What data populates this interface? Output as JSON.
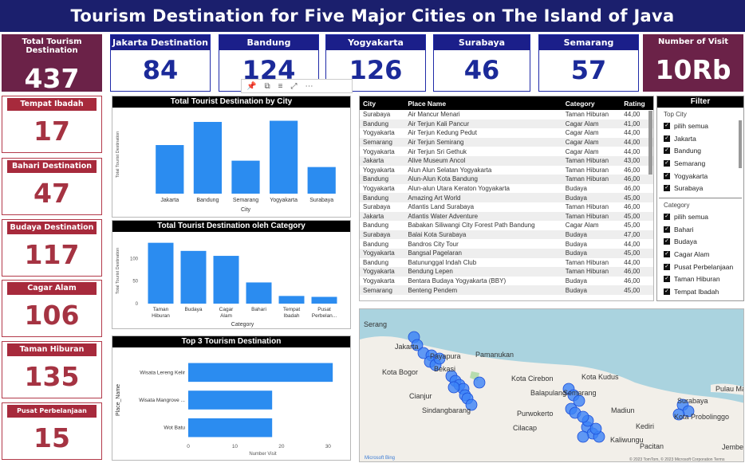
{
  "header": {
    "title": "Tourism Destination for Five Major Cities on The Island of Java"
  },
  "total_kpi": {
    "label": "Total Tourism Destination",
    "value": "437"
  },
  "visit_kpi": {
    "label": "Number of Visit",
    "value": "10Rb"
  },
  "city_kpis": [
    {
      "label": "Jakarta Destination",
      "value": "84"
    },
    {
      "label": "Bandung Destination",
      "value": "124"
    },
    {
      "label": "Yogyakarta Destination",
      "value": "126"
    },
    {
      "label": "Surabaya Destination",
      "value": "46"
    },
    {
      "label": "Semarang Destination",
      "value": "57"
    }
  ],
  "category_kpis": [
    {
      "label": "Tempat Ibadah Destination",
      "value": "17"
    },
    {
      "label": "Bahari Destination",
      "value": "47"
    },
    {
      "label": "Budaya Destination",
      "value": "117"
    },
    {
      "label": "Cagar Alam Destination",
      "value": "106"
    },
    {
      "label": "Taman Hiburan Destination",
      "value": "135"
    },
    {
      "label": "Pusat Perbelanjaan Destination",
      "value": "15"
    }
  ],
  "colors": {
    "bar": "#2b8cf0",
    "title_bg": "#1b1f6d",
    "maroon": "#6b2248",
    "cat_red": "#a72a3c"
  },
  "chart_data": [
    {
      "type": "bar",
      "title": "Total Tourist Destination by City",
      "xlabel": "City",
      "ylabel": "Total Tourist Destination",
      "categories": [
        "Jakarta",
        "Bandung",
        "Semarang",
        "Yogyakarta",
        "Surabaya"
      ],
      "values": [
        84,
        124,
        57,
        126,
        46
      ],
      "ylim": [
        0,
        135
      ]
    },
    {
      "type": "bar",
      "title": "Total Tourist Destination oleh Category",
      "xlabel": "Category",
      "ylabel": "Total Tourist Destination",
      "categories": [
        "Taman Hiburan",
        "Budaya",
        "Cagar Alam",
        "Bahari",
        "Tempat Ibadah",
        "Pusat Perbelan..."
      ],
      "values": [
        135,
        117,
        106,
        47,
        17,
        15
      ],
      "yticks": [
        "100",
        "50",
        "0"
      ],
      "ylim": [
        0,
        145
      ]
    },
    {
      "type": "bar",
      "orientation": "horizontal",
      "title": "Top 3 Tourism Destination",
      "xlabel": "Number Visit",
      "ylabel": "Place_Name",
      "categories": [
        "Wisata Lereng Kelir",
        "Wisata Mangrove ...",
        "Wot Batu"
      ],
      "values": [
        31,
        18,
        18
      ],
      "xticks": [
        "0",
        "10",
        "20",
        "30"
      ],
      "xlim": [
        0,
        32
      ]
    }
  ],
  "visual_toolbar": {
    "icons": [
      "pin-icon",
      "copy-icon",
      "filter-icon",
      "focus-icon",
      "more-icon"
    ]
  },
  "table": {
    "columns": [
      "City",
      "Place Name",
      "Category",
      "Rating"
    ],
    "rows": [
      [
        "Surabaya",
        "Air Mancur Menari",
        "Taman Hiburan",
        "44,00"
      ],
      [
        "Bandung",
        "Air Terjun Kali Pancur",
        "Cagar Alam",
        "41,00"
      ],
      [
        "Yogyakarta",
        "Air Terjun Kedung Pedut",
        "Cagar Alam",
        "44,00"
      ],
      [
        "Semarang",
        "Air Terjun Semirang",
        "Cagar Alam",
        "44,00"
      ],
      [
        "Yogyakarta",
        "Air Terjun Sri Gethuk",
        "Cagar Alam",
        "44,00"
      ],
      [
        "Jakarta",
        "Alive Museum Ancol",
        "Taman Hiburan",
        "43,00"
      ],
      [
        "Yogyakarta",
        "Alun Alun Selatan Yogyakarta",
        "Taman Hiburan",
        "46,00"
      ],
      [
        "Bandung",
        "Alun-Alun Kota Bandung",
        "Taman Hiburan",
        "46,00"
      ],
      [
        "Yogyakarta",
        "Alun-alun Utara Keraton Yogyakarta",
        "Budaya",
        "46,00"
      ],
      [
        "Bandung",
        "Amazing Art World",
        "Budaya",
        "45,00"
      ],
      [
        "Surabaya",
        "Atlantis Land Surabaya",
        "Taman Hiburan",
        "46,00"
      ],
      [
        "Jakarta",
        "Atlantis Water Adventure",
        "Taman Hiburan",
        "45,00"
      ],
      [
        "Bandung",
        "Babakan Siliwangi City Forest Path Bandung",
        "Cagar Alam",
        "45,00"
      ],
      [
        "Surabaya",
        "Balai Kota Surabaya",
        "Budaya",
        "47,00"
      ],
      [
        "Bandung",
        "Bandros City Tour",
        "Budaya",
        "44,00"
      ],
      [
        "Yogyakarta",
        "Bangsal Pagelaran",
        "Budaya",
        "45,00"
      ],
      [
        "Bandung",
        "Batununggal Indah Club",
        "Taman Hiburan",
        "44,00"
      ],
      [
        "Yogyakarta",
        "Bendung Lepen",
        "Taman Hiburan",
        "46,00"
      ],
      [
        "Yogyakarta",
        "Bentara Budaya Yogyakarta (BBY)",
        "Budaya",
        "46,00"
      ],
      [
        "Semarang",
        "Benteng Pendem",
        "Budaya",
        "45,00"
      ]
    ]
  },
  "filter": {
    "title": "Filter",
    "city_label": "Top City",
    "city_items": [
      "pilih semua",
      "Jakarta",
      "Bandung",
      "Semarang",
      "Yogyakarta",
      "Surabaya"
    ],
    "category_label": "Category",
    "category_items": [
      "pilih semua",
      "Bahari",
      "Budaya",
      "Cagar Alam",
      "Pusat Perbelanjaan",
      "Taman Hiburan",
      "Tempat Ibadah"
    ]
  },
  "map": {
    "labels": [
      "Serang",
      "Jakarta",
      "Kota Bogor",
      "Cianjur",
      "Bekasi",
      "Payapura",
      "Pamanukan",
      "Kota Cirebon",
      "Balapulang",
      "Sindangbarang",
      "Purwokerto",
      "Cilacap",
      "Kota Kudus",
      "Semarang",
      "Madiun",
      "Kediri",
      "Kaliwungu",
      "Pacitan",
      "Kota Probolinggo",
      "Surabaya",
      "Pulau Madura",
      "Jember"
    ],
    "attribution": "© 2023 TomTom, © 2023 Microsoft Corporation  Terms",
    "logo": "Microsoft Bing"
  }
}
